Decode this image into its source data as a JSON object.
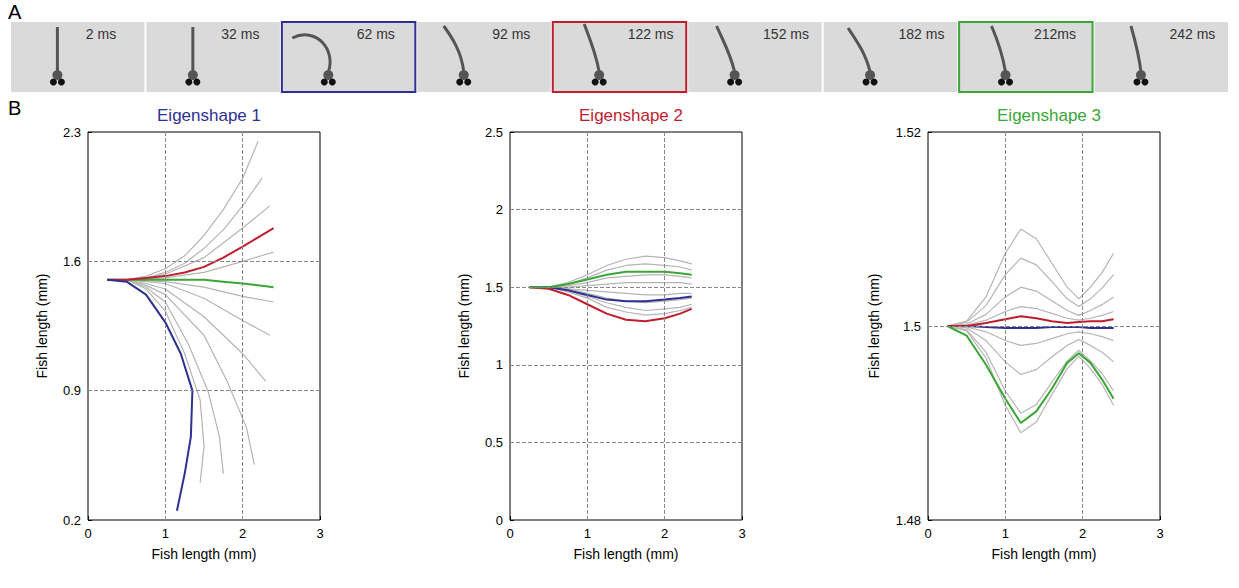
{
  "panel_labels": [
    "A",
    "B"
  ],
  "frames": [
    {
      "label": "2 ms"
    },
    {
      "label": "32 ms"
    },
    {
      "label": "62 ms",
      "color": "#2e3192"
    },
    {
      "label": "92 ms"
    },
    {
      "label": "122 ms",
      "color": "#be1e2d"
    },
    {
      "label": "152 ms"
    },
    {
      "label": "182 ms"
    },
    {
      "label": "212ms",
      "color": "#3aa635"
    },
    {
      "label": "242 ms"
    }
  ],
  "chart_data": [
    {
      "type": "line",
      "title": "Eigenshape 1",
      "color": "#2e3192",
      "xlabel": "Fish length (mm)",
      "ylabel": "Fish length (mm)",
      "xlim": [
        0,
        3
      ],
      "xticks": [
        0,
        1,
        2,
        3
      ],
      "ylim": [
        0.2,
        2.3
      ],
      "yticks": [
        0.2,
        0.9,
        1.6,
        2.3
      ],
      "grid": true,
      "series": [
        {
          "color": "#b5b5b5",
          "x": [
            0.25,
            0.5,
            0.75,
            1.0,
            1.25,
            1.5,
            1.75,
            2.0,
            2.2
          ],
          "values": [
            1.5,
            1.5,
            1.52,
            1.56,
            1.63,
            1.74,
            1.88,
            2.05,
            2.25
          ]
        },
        {
          "color": "#b5b5b5",
          "x": [
            0.25,
            0.5,
            0.75,
            1.0,
            1.25,
            1.5,
            1.75,
            2.0,
            2.25
          ],
          "values": [
            1.5,
            1.5,
            1.51,
            1.54,
            1.59,
            1.67,
            1.77,
            1.9,
            2.05
          ]
        },
        {
          "color": "#b5b5b5",
          "x": [
            0.25,
            0.5,
            0.75,
            1.0,
            1.5,
            2.0,
            2.35
          ],
          "values": [
            1.5,
            1.5,
            1.51,
            1.53,
            1.62,
            1.78,
            1.9
          ]
        },
        {
          "color": "#b5b5b5",
          "x": [
            0.25,
            0.5,
            1.0,
            1.5,
            2.0,
            2.4
          ],
          "values": [
            1.5,
            1.5,
            1.51,
            1.54,
            1.6,
            1.65
          ]
        },
        {
          "color": "#b5b5b5",
          "x": [
            0.25,
            0.5,
            1.0,
            1.5,
            2.0,
            2.4
          ],
          "values": [
            1.5,
            1.5,
            1.49,
            1.46,
            1.41,
            1.38
          ]
        },
        {
          "color": "#b5b5b5",
          "x": [
            0.25,
            0.5,
            1.0,
            1.5,
            2.0,
            2.35
          ],
          "values": [
            1.5,
            1.5,
            1.48,
            1.4,
            1.28,
            1.2
          ]
        },
        {
          "color": "#b5b5b5",
          "x": [
            0.25,
            0.5,
            0.75,
            1.0,
            1.5,
            2.0,
            2.3
          ],
          "values": [
            1.5,
            1.5,
            1.48,
            1.45,
            1.3,
            1.1,
            0.95
          ]
        },
        {
          "color": "#b5b5b5",
          "x": [
            0.25,
            0.5,
            0.75,
            1.0,
            1.5,
            1.8,
            2.05,
            2.15
          ],
          "values": [
            1.5,
            1.5,
            1.47,
            1.42,
            1.2,
            0.95,
            0.7,
            0.5
          ]
        },
        {
          "color": "#b5b5b5",
          "x": [
            0.25,
            0.5,
            0.75,
            1.0,
            1.3,
            1.55,
            1.7,
            1.75
          ],
          "values": [
            1.5,
            1.5,
            1.46,
            1.38,
            1.15,
            0.9,
            0.65,
            0.45
          ]
        },
        {
          "color": "#b5b5b5",
          "x": [
            0.25,
            0.5,
            0.75,
            1.0,
            1.25,
            1.45,
            1.5,
            1.45
          ],
          "values": [
            1.5,
            1.5,
            1.45,
            1.33,
            1.1,
            0.85,
            0.6,
            0.4
          ]
        },
        {
          "color": "#3aa635",
          "x": [
            0.25,
            0.5,
            1.0,
            1.5,
            1.75,
            2.0,
            2.4
          ],
          "values": [
            1.5,
            1.5,
            1.5,
            1.5,
            1.49,
            1.48,
            1.46
          ]
        },
        {
          "color": "#be1e2d",
          "x": [
            0.25,
            0.5,
            0.75,
            1.0,
            1.25,
            1.5,
            1.75,
            2.0,
            2.2,
            2.4
          ],
          "values": [
            1.5,
            1.5,
            1.51,
            1.52,
            1.54,
            1.57,
            1.62,
            1.68,
            1.73,
            1.78
          ]
        },
        {
          "color": "#2e3192",
          "x": [
            0.25,
            0.5,
            0.75,
            1.0,
            1.2,
            1.35,
            1.33,
            1.25,
            1.15
          ],
          "values": [
            1.5,
            1.49,
            1.42,
            1.27,
            1.1,
            0.9,
            0.65,
            0.45,
            0.25
          ]
        }
      ]
    },
    {
      "type": "line",
      "title": "Eigenshape 2",
      "color": "#be1e2d",
      "xlabel": "Fish length (mm)",
      "ylabel": "Fish length (mm)",
      "xlim": [
        0,
        3
      ],
      "xticks": [
        0,
        1,
        2,
        3
      ],
      "ylim": [
        0,
        2.5
      ],
      "yticks": [
        0,
        0.5,
        1,
        1.5,
        2,
        2.5
      ],
      "grid": true,
      "x": [
        0.25,
        0.5,
        0.75,
        1.0,
        1.25,
        1.5,
        1.75,
        2.0,
        2.2,
        2.35
      ],
      "series": [
        {
          "color": "#b5b5b5",
          "values": [
            1.5,
            1.5,
            1.53,
            1.58,
            1.64,
            1.68,
            1.7,
            1.69,
            1.67,
            1.65
          ]
        },
        {
          "color": "#b5b5b5",
          "values": [
            1.5,
            1.5,
            1.52,
            1.56,
            1.61,
            1.64,
            1.65,
            1.64,
            1.63,
            1.61
          ]
        },
        {
          "color": "#b5b5b5",
          "values": [
            1.5,
            1.5,
            1.51,
            1.53,
            1.56,
            1.57,
            1.58,
            1.58,
            1.57,
            1.56
          ]
        },
        {
          "color": "#b5b5b5",
          "values": [
            1.5,
            1.5,
            1.5,
            1.51,
            1.52,
            1.53,
            1.53,
            1.53,
            1.53,
            1.52
          ]
        },
        {
          "color": "#b5b5b5",
          "values": [
            1.5,
            1.5,
            1.49,
            1.48,
            1.47,
            1.46,
            1.45,
            1.45,
            1.46,
            1.46
          ]
        },
        {
          "color": "#b5b5b5",
          "values": [
            1.5,
            1.5,
            1.49,
            1.46,
            1.43,
            1.41,
            1.4,
            1.41,
            1.42,
            1.43
          ]
        },
        {
          "color": "#b5b5b5",
          "values": [
            1.5,
            1.5,
            1.48,
            1.44,
            1.4,
            1.37,
            1.35,
            1.36,
            1.37,
            1.39
          ]
        },
        {
          "color": "#b5b5b5",
          "values": [
            1.5,
            1.5,
            1.47,
            1.43,
            1.37,
            1.34,
            1.32,
            1.33,
            1.35,
            1.37
          ]
        },
        {
          "color": "#2e3192",
          "values": [
            1.5,
            1.5,
            1.48,
            1.45,
            1.42,
            1.41,
            1.41,
            1.42,
            1.43,
            1.44
          ]
        },
        {
          "color": "#be1e2d",
          "values": [
            1.5,
            1.49,
            1.45,
            1.39,
            1.33,
            1.29,
            1.28,
            1.3,
            1.33,
            1.36
          ]
        },
        {
          "color": "#3aa635",
          "values": [
            1.5,
            1.5,
            1.52,
            1.55,
            1.58,
            1.6,
            1.6,
            1.6,
            1.59,
            1.58
          ]
        }
      ]
    },
    {
      "type": "line",
      "title": "Eigenshape 3",
      "color": "#3aa635",
      "xlabel": "Fish length (mm)",
      "ylabel": "Fish length (mm)",
      "xlim": [
        0,
        3
      ],
      "xticks": [
        0,
        1,
        2,
        3
      ],
      "ylim": [
        1.48,
        1.52
      ],
      "yticks": [
        1.48,
        1.5,
        1.52
      ],
      "grid": true,
      "x": [
        0.25,
        0.5,
        0.75,
        1.0,
        1.2,
        1.4,
        1.6,
        1.8,
        1.95,
        2.1,
        2.25,
        2.4
      ],
      "series": [
        {
          "color": "#b5b5b5",
          "values": [
            1.5,
            1.5005,
            1.503,
            1.5075,
            1.51,
            1.509,
            1.5065,
            1.504,
            1.5028,
            1.504,
            1.5055,
            1.5075
          ]
        },
        {
          "color": "#b5b5b5",
          "values": [
            1.5,
            1.5004,
            1.5021,
            1.5053,
            1.507,
            1.5063,
            1.5046,
            1.5028,
            1.502,
            1.5028,
            1.5039,
            1.5053
          ]
        },
        {
          "color": "#b5b5b5",
          "values": [
            1.5,
            1.5002,
            1.5012,
            1.503,
            1.504,
            1.5036,
            1.5026,
            1.5016,
            1.5011,
            1.5016,
            1.5022,
            1.503
          ]
        },
        {
          "color": "#b5b5b5",
          "values": [
            1.5,
            1.5001,
            1.5006,
            1.5015,
            1.502,
            1.5018,
            1.5013,
            1.5008,
            1.5006,
            1.5008,
            1.5011,
            1.5015
          ]
        },
        {
          "color": "#b5b5b5",
          "values": [
            1.5,
            1.4999,
            1.4994,
            1.4985,
            1.498,
            1.4982,
            1.4987,
            1.4992,
            1.4994,
            1.4992,
            1.4989,
            1.4985
          ]
        },
        {
          "color": "#b5b5b5",
          "values": [
            1.5,
            1.4998,
            1.4985,
            1.4963,
            1.495,
            1.4955,
            1.4968,
            1.498,
            1.4986,
            1.498,
            1.4973,
            1.4963
          ]
        },
        {
          "color": "#b5b5b5",
          "values": [
            1.5,
            1.4996,
            1.4973,
            1.4933,
            1.491,
            1.4919,
            1.4942,
            1.4964,
            1.4975,
            1.4964,
            1.4951,
            1.4933
          ]
        },
        {
          "color": "#b5b5b5",
          "values": [
            1.5,
            1.4995,
            1.4967,
            1.4918,
            1.489,
            1.4901,
            1.4929,
            1.4956,
            1.4969,
            1.4956,
            1.494,
            1.4918
          ]
        },
        {
          "color": "#2e3192",
          "values": [
            1.5,
            1.5,
            1.4999,
            1.4998,
            1.4998,
            1.4998,
            1.4999,
            1.4999,
            1.4999,
            1.4998,
            1.4998,
            1.4998
          ]
        },
        {
          "color": "#be1e2d",
          "values": [
            1.5,
            1.5,
            1.5003,
            1.5007,
            1.501,
            1.5008,
            1.5005,
            1.5003,
            1.5004,
            1.5005,
            1.5005,
            1.5007
          ]
        },
        {
          "color": "#3aa635",
          "values": [
            1.5,
            1.499,
            1.496,
            1.4925,
            1.49,
            1.4912,
            1.4935,
            1.4962,
            1.4972,
            1.4962,
            1.4945,
            1.4925
          ]
        }
      ]
    }
  ]
}
